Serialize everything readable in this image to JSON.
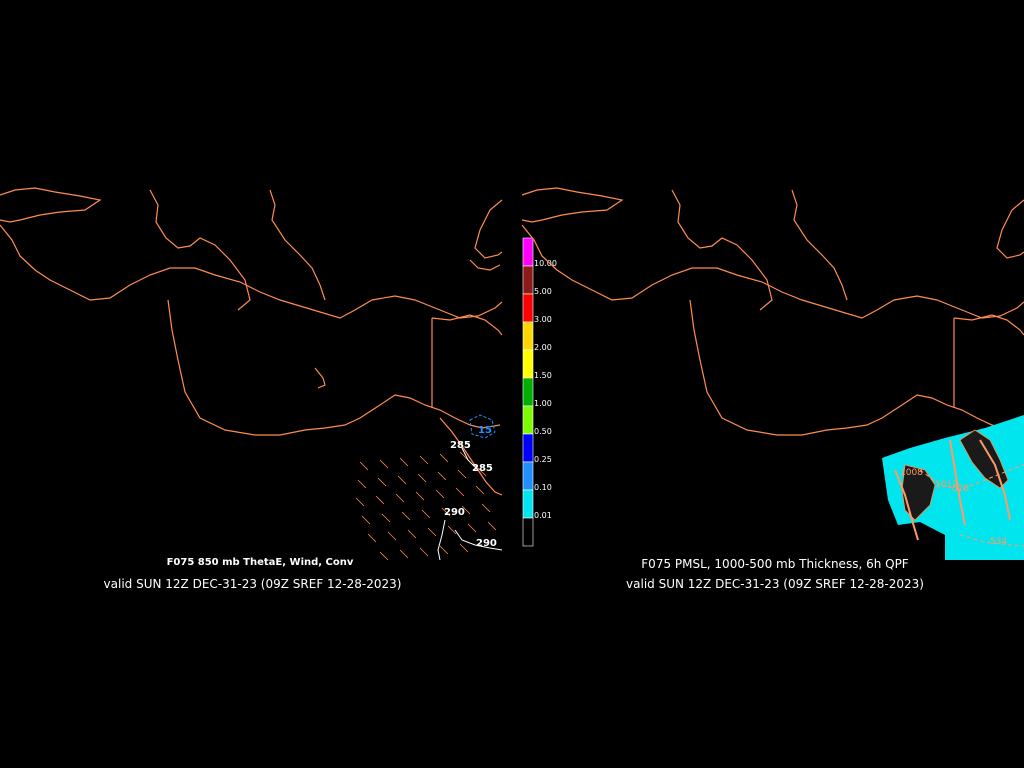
{
  "left_panel": {
    "title": "F075 850 mb ThetaE, Wind, Conv",
    "valid": "valid SUN 12Z DEC-31-23 (09Z SREF 12-28-2023)",
    "contour_labels": [
      "285",
      "285",
      "290",
      "290"
    ],
    "conv_label": "15"
  },
  "right_panel": {
    "title": "F075 PMSL, 1000-500 mb Thickness, 6h QPF",
    "valid": "valid SUN 12Z DEC-31-23 (09Z SREF 12-28-2023)",
    "contour_labels": [
      "1008",
      "1012",
      "528",
      "534"
    ]
  },
  "colorbar": {
    "bins": [
      {
        "label": "10.00",
        "color": "#ff00ff"
      },
      {
        "label": "5.00",
        "color": "#8b1a1a"
      },
      {
        "label": "3.00",
        "color": "#ff0000"
      },
      {
        "label": "2.00",
        "color": "#ffd700"
      },
      {
        "label": "1.50",
        "color": "#ffff00"
      },
      {
        "label": "1.00",
        "color": "#00b000"
      },
      {
        "label": "0.50",
        "color": "#7cfc00"
      },
      {
        "label": "0.25",
        "color": "#0000ff"
      },
      {
        "label": "0.10",
        "color": "#1e90ff"
      },
      {
        "label": "0.01",
        "color": "#00e5ee"
      },
      {
        "label": "",
        "color": "#000000"
      }
    ]
  },
  "colors": {
    "coastline": "#ff8c50",
    "qpf": "#00e5ee",
    "conv": "#1e90ff",
    "text": "#ffffff"
  }
}
